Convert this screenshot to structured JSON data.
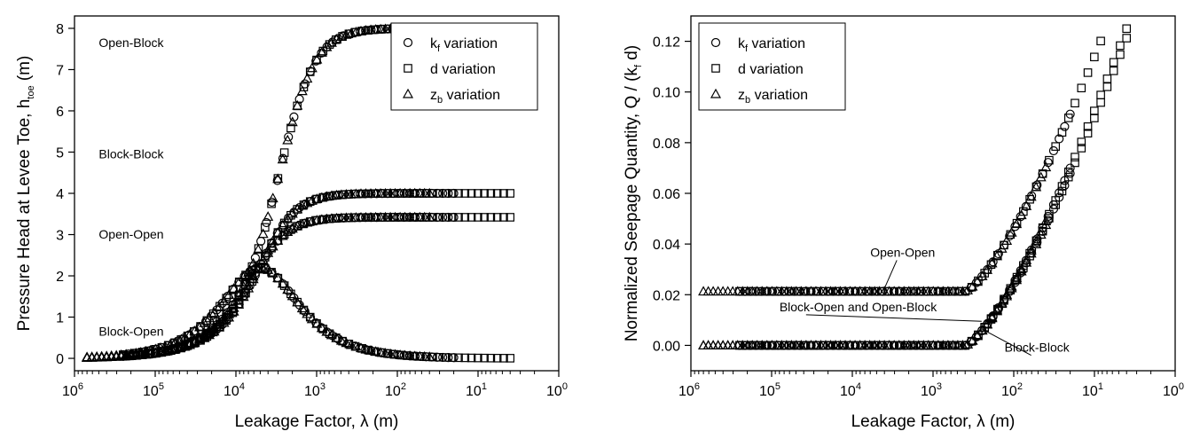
{
  "colors": {
    "marker_stroke": "#000000",
    "axis": "#000000",
    "background": "#ffffff"
  },
  "chart_data": [
    {
      "type": "scatter",
      "x_scale": "log",
      "x_reversed": true,
      "xlim": [
        1000000,
        1
      ],
      "ylim": [
        -0.3,
        8.3
      ],
      "xlabel": "Leakage Factor, λ (m)",
      "ylabel": {
        "main": "Pressure Head at Levee Toe, h",
        "sub": "toe",
        "unit": " (m)"
      },
      "x_ticks": [
        {
          "value": 1000000,
          "base": "10",
          "exp": "6"
        },
        {
          "value": 100000,
          "base": "10",
          "exp": "5"
        },
        {
          "value": 10000,
          "base": "10",
          "exp": "4"
        },
        {
          "value": 1000,
          "base": "10",
          "exp": "3"
        },
        {
          "value": 100,
          "base": "10",
          "exp": "2"
        },
        {
          "value": 10,
          "base": "10",
          "exp": "1"
        },
        {
          "value": 1,
          "base": "10",
          "exp": "0"
        }
      ],
      "y_ticks": [
        0,
        1,
        2,
        3,
        4,
        5,
        6,
        7,
        8
      ],
      "grid": false,
      "legend_position": "top-right",
      "legend": [
        {
          "marker": "circle",
          "label": "k",
          "sub": "f",
          "suffix": " variation"
        },
        {
          "marker": "square",
          "label": "d variation",
          "sub": "",
          "suffix": ""
        },
        {
          "marker": "triangle",
          "label": "z",
          "sub": "b",
          "suffix": " variation"
        }
      ],
      "curves": [
        {
          "label": "Open-Block",
          "kind": "decay",
          "y0": 8.0,
          "scale": 0.00057
        },
        {
          "label": "Block-Block",
          "kind": "decay",
          "y0": 4.0,
          "scale": 0.00033
        },
        {
          "label": "Open-Open",
          "kind": "decay",
          "y0": 3.42,
          "scale": 0.00026
        },
        {
          "label": "Block-Open",
          "kind": "rise",
          "peak": 2.93,
          "scale": 0.0002
        }
      ],
      "annotations": [
        {
          "text": "Open-Block",
          "x": 500000,
          "y": 7.55
        },
        {
          "text": "Block-Block",
          "x": 500000,
          "y": 4.85
        },
        {
          "text": "Open-Open",
          "x": 500000,
          "y": 2.9
        },
        {
          "text": "Block-Open",
          "x": 500000,
          "y": 0.55
        }
      ]
    },
    {
      "type": "scatter",
      "x_scale": "log",
      "x_reversed": true,
      "xlim": [
        1000000,
        1
      ],
      "ylim": [
        -0.01,
        0.13
      ],
      "xlabel": "Leakage Factor, λ (m)",
      "ylabel": {
        "main": "Normalized Seepage Quantity, Q / (k",
        "sub": "f",
        "unit": " d)"
      },
      "x_ticks": [
        {
          "value": 1000000,
          "base": "10",
          "exp": "6"
        },
        {
          "value": 100000,
          "base": "10",
          "exp": "5"
        },
        {
          "value": 10000,
          "base": "10",
          "exp": "4"
        },
        {
          "value": 1000,
          "base": "10",
          "exp": "3"
        },
        {
          "value": 100,
          "base": "10",
          "exp": "2"
        },
        {
          "value": 10,
          "base": "10",
          "exp": "1"
        },
        {
          "value": 1,
          "base": "10",
          "exp": "0"
        }
      ],
      "y_ticks": [
        "0.00",
        "0.02",
        "0.04",
        "0.06",
        "0.08",
        "0.10",
        "0.12"
      ],
      "grid": false,
      "legend_position": "top-left",
      "legend": [
        {
          "marker": "circle",
          "label": "k",
          "sub": "f",
          "suffix": " variation"
        },
        {
          "marker": "square",
          "label": "d variation",
          "sub": "",
          "suffix": ""
        },
        {
          "marker": "triangle",
          "label": "z",
          "sub": "b",
          "suffix": " variation"
        }
      ],
      "curves": [
        {
          "label": "Open-Open",
          "kind": "flow",
          "c": 0.0213,
          "k": 1.0,
          "a": 0.75
        },
        {
          "label": "Block-Open and Open-Block",
          "kind": "flow",
          "c": 0.0,
          "k": 1.0,
          "a": 0.75
        },
        {
          "label": "Block-Block",
          "kind": "flow",
          "c": 0.0,
          "k": 0.97,
          "a": 0.75
        }
      ],
      "annotations": [
        {
          "text": "Open-Open",
          "x": 6000,
          "y": 0.035,
          "leader_to": [
            4000,
            0.0225
          ]
        },
        {
          "text": "Block-Open and Open-Block",
          "x": 80000,
          "y": 0.0135,
          "leader_to": [
            250,
            0.0095
          ]
        },
        {
          "text": "Block-Block",
          "x": 130,
          "y": -0.0025,
          "leader_to": [
            250,
            0.0065
          ]
        }
      ]
    }
  ]
}
